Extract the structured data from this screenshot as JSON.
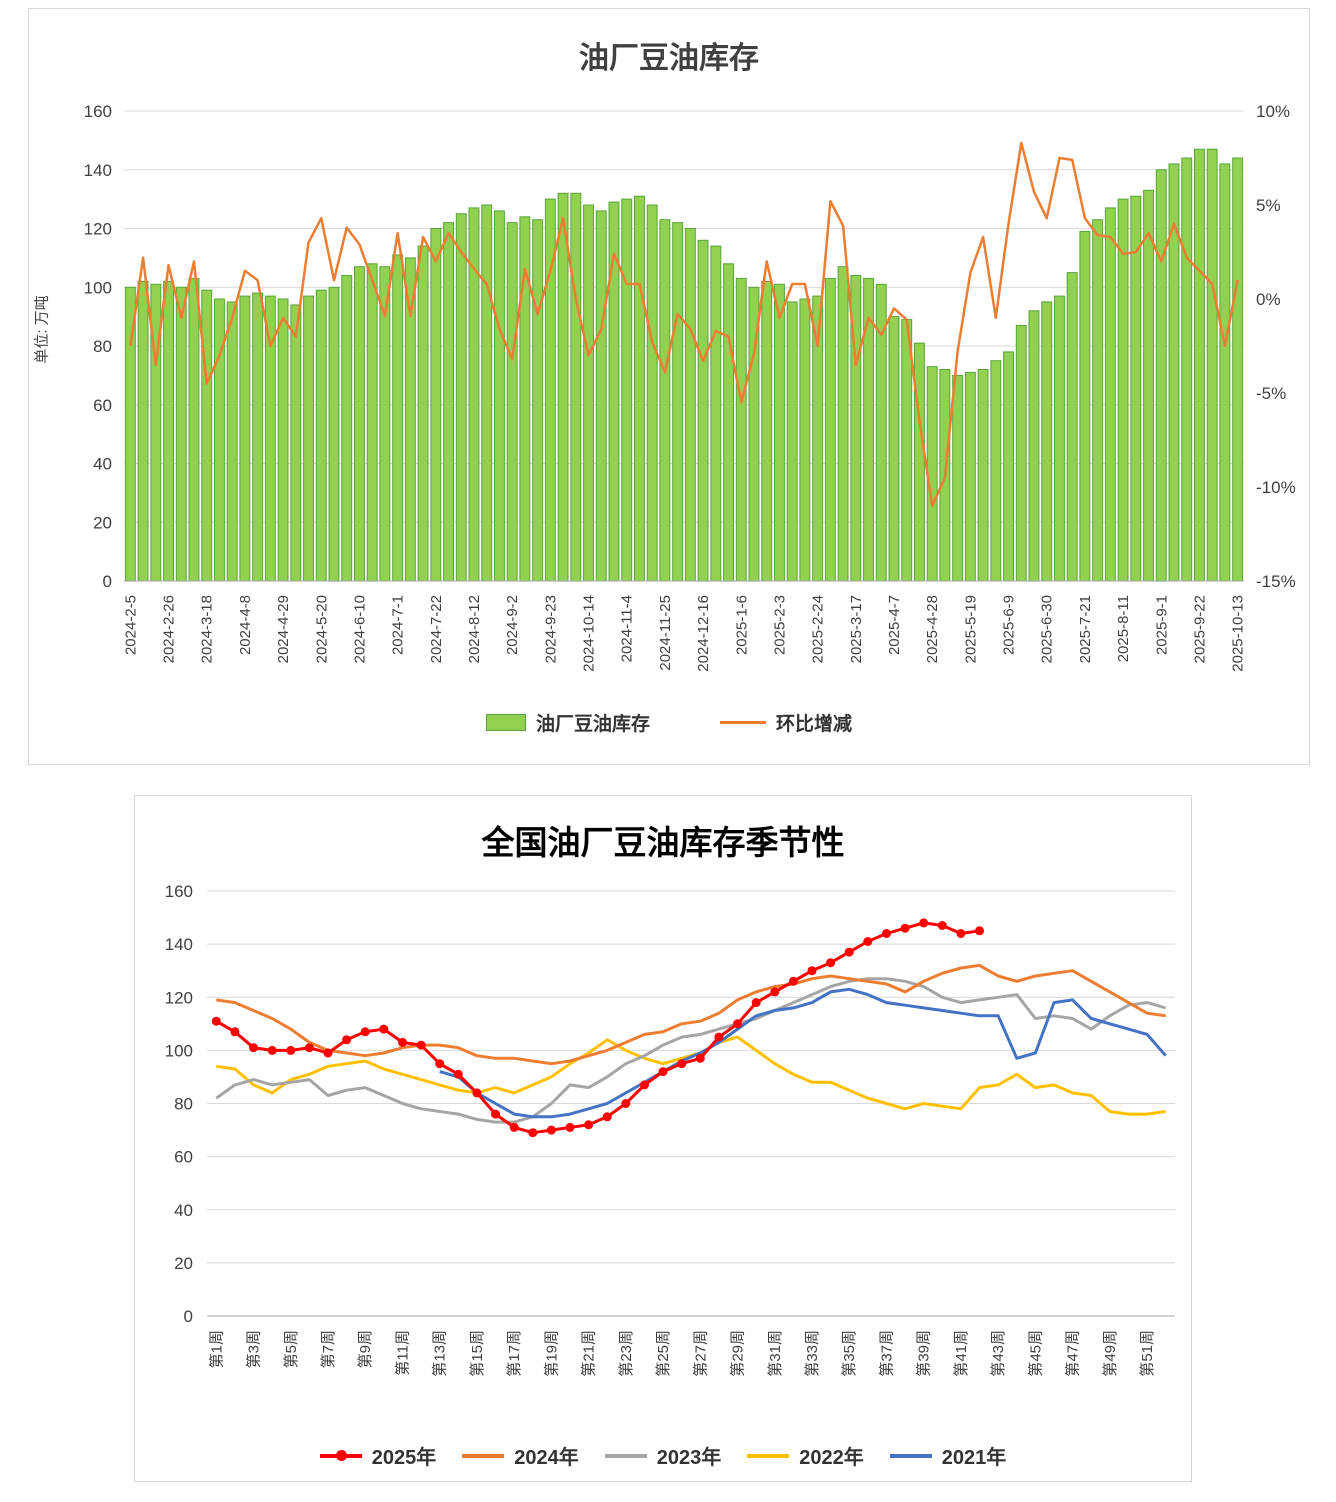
{
  "chart_data": [
    {
      "type": "bar",
      "subtype": "combo-bar-line",
      "title": "油厂豆油库存",
      "ylabel": "单位: 万吨",
      "ylim": [
        0,
        160
      ],
      "y2lim": [
        -15,
        10
      ],
      "yticks": [
        0,
        20,
        40,
        60,
        80,
        100,
        120,
        140,
        160
      ],
      "y2ticks": [
        "10%",
        "5%",
        "0%",
        "-5%",
        "-10%",
        "-15%"
      ],
      "grid": "horizontal",
      "legend_position": "bottom",
      "label_every": 3,
      "x_labels": [
        "2024-2-5",
        "2024-2-26",
        "2024-3-18",
        "2024-4-8",
        "2024-4-29",
        "2024-5-20",
        "2024-6-10",
        "2024-7-1",
        "2024-7-22",
        "2024-8-12",
        "2024-9-2",
        "2024-9-23",
        "2024-10-14",
        "2024-11-4",
        "2024-11-25",
        "2024-12-16",
        "2025-1-6",
        "2025-2-3",
        "2025-2-24",
        "2025-3-17",
        "2025-4-7",
        "2025-4-28",
        "2025-5-19",
        "2025-6-9",
        "2025-6-30",
        "2025-7-21",
        "2025-8-11",
        "2025-9-1",
        "2025-9-22",
        "2025-10-13"
      ],
      "bar_series": {
        "name": "油厂豆油库存",
        "color": "#92D050",
        "stroke": "#58A43A",
        "values": [
          100,
          102,
          101,
          102,
          100,
          103,
          99,
          96,
          95,
          97,
          98,
          97,
          96,
          94,
          97,
          99,
          100,
          104,
          107,
          108,
          107,
          111,
          110,
          114,
          120,
          122,
          125,
          127,
          128,
          126,
          122,
          124,
          123,
          130,
          132,
          132,
          128,
          126,
          129,
          130,
          131,
          128,
          123,
          122,
          120,
          116,
          114,
          108,
          103,
          100,
          102,
          101,
          95,
          96,
          97,
          103,
          107,
          104,
          103,
          101,
          90,
          89,
          81,
          73,
          72,
          70,
          71,
          72,
          75,
          78,
          87,
          92,
          95,
          97,
          105,
          119,
          123,
          127,
          130,
          131,
          133,
          140,
          142,
          144,
          147,
          147,
          142,
          144
        ]
      },
      "line_series": {
        "name": "环比增减",
        "color": "#ED7D31",
        "values": [
          -2.5,
          2.2,
          -3.5,
          1.8,
          -1.0,
          2.0,
          -4.5,
          -3.0,
          -1.0,
          1.5,
          1.0,
          -2.5,
          -1.0,
          -2.0,
          3.0,
          4.3,
          1.0,
          3.8,
          2.9,
          1.0,
          -0.9,
          3.5,
          -0.9,
          3.3,
          2.0,
          3.5,
          2.5,
          1.6,
          0.8,
          -1.6,
          -3.2,
          1.6,
          -0.8,
          1.5,
          4.3,
          0.0,
          -3.0,
          -1.6,
          2.4,
          0.8,
          0.8,
          -2.3,
          -3.9,
          -0.8,
          -1.6,
          -3.3,
          -1.7,
          -2.0,
          -5.5,
          -2.9,
          2.0,
          -1.0,
          0.8,
          0.8,
          -2.5,
          5.2,
          3.9,
          -3.5,
          -1.0,
          -1.9,
          -0.5,
          -1.1,
          -6.5,
          -11.0,
          -9.5,
          -2.8,
          1.4,
          3.3,
          -1.0,
          4.0,
          8.3,
          5.7,
          4.3,
          7.5,
          7.4,
          4.3,
          3.4,
          3.3,
          2.4,
          2.5,
          3.5,
          2.0,
          4.0,
          2.2,
          1.5,
          0.8,
          -2.5,
          1.0
        ]
      }
    },
    {
      "type": "line",
      "title": "全国油厂豆油库存季节性",
      "ylim": [
        0,
        160
      ],
      "yticks": [
        0,
        20,
        40,
        60,
        80,
        100,
        120,
        140,
        160
      ],
      "weeks": 52,
      "grid": "horizontal",
      "legend_position": "bottom",
      "x_labels": [
        "第1周",
        "第3周",
        "第5周",
        "第7周",
        "第9周",
        "第11周",
        "第13周",
        "第15周",
        "第17周",
        "第19周",
        "第21周",
        "第23周",
        "第25周",
        "第27周",
        "第29周",
        "第31周",
        "第33周",
        "第35周",
        "第37周",
        "第39周",
        "第41周",
        "第43周",
        "第45周",
        "第47周",
        "第49周",
        "第51周"
      ],
      "series": [
        {
          "name": "2025年",
          "color": "#FF0000",
          "marker": true,
          "values": [
            111,
            107,
            101,
            100,
            100,
            101,
            99,
            104,
            107,
            108,
            103,
            102,
            95,
            91,
            84,
            76,
            71,
            69,
            70,
            71,
            72,
            75,
            80,
            87,
            92,
            95,
            97,
            105,
            110,
            118,
            122,
            126,
            130,
            133,
            137,
            141,
            144,
            146,
            148,
            147,
            144,
            145
          ]
        },
        {
          "name": "2024年",
          "color": "#ED7D31",
          "marker": false,
          "values": [
            119,
            118,
            115,
            112,
            108,
            103,
            100,
            99,
            98,
            99,
            101,
            102,
            102,
            101,
            98,
            97,
            97,
            96,
            95,
            96,
            98,
            100,
            103,
            106,
            107,
            110,
            111,
            114,
            119,
            122,
            124,
            125,
            127,
            128,
            127,
            126,
            125,
            122,
            126,
            129,
            131,
            132,
            128,
            126,
            128,
            129,
            130,
            126,
            122,
            118,
            114,
            113
          ]
        },
        {
          "name": "2023年",
          "color": "#A5A5A5",
          "marker": false,
          "values": [
            82,
            87,
            89,
            87,
            88,
            89,
            83,
            85,
            86,
            83,
            80,
            78,
            77,
            76,
            74,
            73,
            73,
            75,
            80,
            87,
            86,
            90,
            95,
            98,
            102,
            105,
            106,
            108,
            110,
            112,
            115,
            118,
            121,
            124,
            126,
            127,
            127,
            126,
            124,
            120,
            118,
            119,
            120,
            121,
            112,
            113,
            112,
            108,
            113,
            117,
            118,
            116
          ]
        },
        {
          "name": "2022年",
          "color": "#FFC000",
          "marker": false,
          "values": [
            94,
            93,
            87,
            84,
            89,
            91,
            94,
            95,
            96,
            93,
            91,
            89,
            87,
            85,
            84,
            86,
            84,
            87,
            90,
            95,
            99,
            104,
            100,
            97,
            95,
            97,
            99,
            103,
            105,
            100,
            95,
            91,
            88,
            88,
            85,
            82,
            80,
            78,
            80,
            79,
            78,
            86,
            87,
            91,
            86,
            87,
            84,
            83,
            77,
            76,
            76,
            77
          ]
        },
        {
          "name": "2021年",
          "color": "#4472C4",
          "marker": false,
          "values": [
            null,
            null,
            null,
            null,
            null,
            null,
            null,
            null,
            null,
            null,
            null,
            null,
            92,
            90,
            84,
            80,
            76,
            75,
            75,
            76,
            78,
            80,
            84,
            88,
            92,
            96,
            99,
            103,
            108,
            113,
            115,
            116,
            118,
            122,
            123,
            121,
            118,
            117,
            116,
            115,
            114,
            113,
            113,
            97,
            99,
            118,
            119,
            112,
            110,
            108,
            106,
            98
          ]
        }
      ]
    }
  ]
}
